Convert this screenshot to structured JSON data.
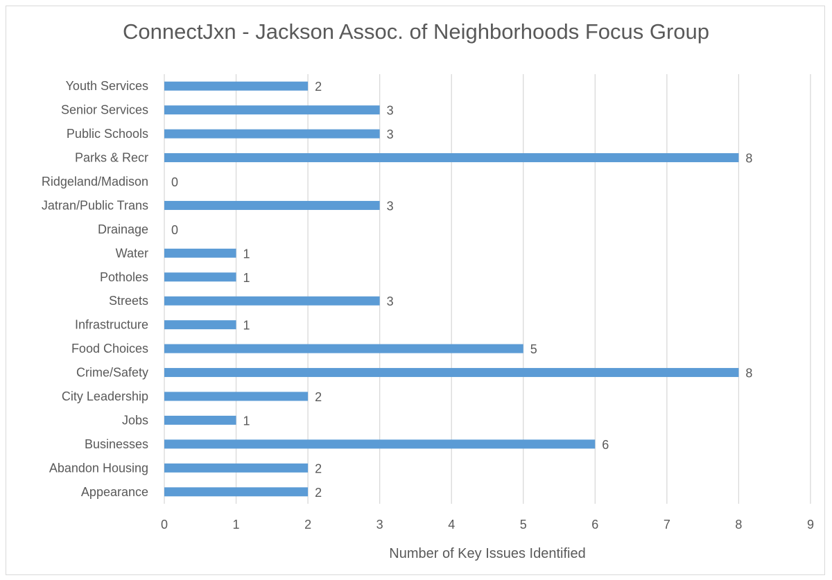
{
  "chart_data": {
    "type": "bar",
    "orientation": "horizontal",
    "title": "ConnectJxn - Jackson Assoc. of Neighborhoods Focus Group",
    "xlabel": "Number of Key Issues Identified",
    "ylabel": "",
    "categories": [
      "Youth Services",
      "Senior Services",
      "Public Schools",
      "Parks & Recr",
      "Ridgeland/Madison",
      "Jatran/Public Trans",
      "Drainage",
      "Water",
      "Potholes",
      "Streets",
      "Infrastructure",
      "Food Choices",
      "Crime/Safety",
      "City Leadership",
      "Jobs",
      "Businesses",
      "Abandon Housing",
      "Appearance"
    ],
    "values": [
      2,
      3,
      3,
      8,
      0,
      3,
      0,
      1,
      1,
      3,
      1,
      5,
      8,
      2,
      1,
      6,
      2,
      2
    ],
    "xlim": [
      0,
      9
    ],
    "xticks": [
      "0",
      "1",
      "2",
      "3",
      "4",
      "5",
      "6",
      "7",
      "8",
      "9"
    ],
    "grid": true,
    "data_labels": true,
    "bar_color": "#5b9bd5",
    "grid_color": "#d9d9d9"
  }
}
